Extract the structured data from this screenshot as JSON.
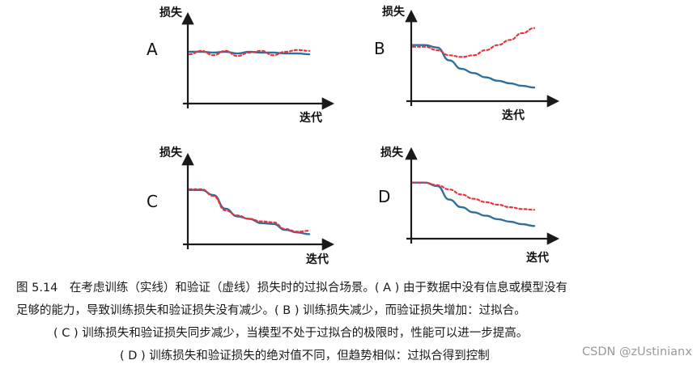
{
  "chart_data": [
    {
      "type": "line",
      "panel": "A",
      "xlabel": "迭代",
      "ylabel": "损失",
      "ylim": [
        0,
        1
      ],
      "x": [
        0,
        1,
        2,
        3,
        4,
        5,
        6,
        7,
        8,
        9,
        10
      ],
      "series": [
        {
          "style": "solid",
          "color": "#2e6f9c",
          "values": [
            0.61,
            0.61,
            0.6,
            0.61,
            0.59,
            0.61,
            0.6,
            0.6,
            0.59,
            0.59,
            0.58
          ]
        },
        {
          "style": "dashed",
          "color": "#e8343f",
          "values": [
            0.58,
            0.62,
            0.57,
            0.62,
            0.56,
            0.6,
            0.62,
            0.57,
            0.61,
            0.63,
            0.62
          ]
        }
      ]
    },
    {
      "type": "line",
      "panel": "B",
      "xlabel": "迭代",
      "ylabel": "损失",
      "ylim": [
        0,
        1
      ],
      "x": [
        0,
        1,
        2,
        3,
        4,
        5,
        6,
        7,
        8,
        9,
        10
      ],
      "series": [
        {
          "style": "solid",
          "color": "#2e6f9c",
          "values": [
            0.66,
            0.66,
            0.63,
            0.48,
            0.38,
            0.33,
            0.28,
            0.24,
            0.21,
            0.18,
            0.16
          ]
        },
        {
          "style": "dashed",
          "color": "#e8343f",
          "values": [
            0.64,
            0.64,
            0.6,
            0.54,
            0.52,
            0.54,
            0.6,
            0.66,
            0.72,
            0.8,
            0.86
          ]
        }
      ]
    },
    {
      "type": "line",
      "panel": "C",
      "xlabel": "迭代",
      "ylabel": "损失",
      "ylim": [
        0,
        1
      ],
      "x": [
        0,
        1,
        2,
        3,
        4,
        5,
        6,
        7,
        8,
        9,
        10
      ],
      "series": [
        {
          "style": "solid",
          "color": "#2e6f9c",
          "values": [
            0.64,
            0.64,
            0.58,
            0.42,
            0.33,
            0.3,
            0.25,
            0.24,
            0.17,
            0.14,
            0.12
          ]
        },
        {
          "style": "dashed",
          "color": "#e8343f",
          "values": [
            0.65,
            0.65,
            0.57,
            0.4,
            0.34,
            0.3,
            0.27,
            0.26,
            0.18,
            0.15,
            0.16
          ]
        }
      ]
    },
    {
      "type": "line",
      "panel": "D",
      "xlabel": "迭代",
      "ylabel": "损失",
      "ylim": [
        0,
        1
      ],
      "x": [
        0,
        1,
        2,
        3,
        4,
        5,
        6,
        7,
        8,
        9,
        10
      ],
      "series": [
        {
          "style": "solid",
          "color": "#2e6f9c",
          "values": [
            0.66,
            0.66,
            0.62,
            0.46,
            0.37,
            0.31,
            0.27,
            0.23,
            0.2,
            0.17,
            0.15
          ]
        },
        {
          "style": "dashed",
          "color": "#e8343f",
          "values": [
            0.66,
            0.66,
            0.63,
            0.58,
            0.52,
            0.47,
            0.43,
            0.4,
            0.37,
            0.35,
            0.34
          ]
        }
      ]
    }
  ],
  "caption": {
    "line1": "图 5.14　在考虑训练（实线）和验证（虚线）损失时的过拟合场景。( A ) 由于数据中没有信息或模型没有",
    "line2": "足够的能力，导致训练损失和验证损失没有减少。( B ) 训练损失减少，而验证损失增加：过拟合。",
    "line3": "( C ) 训练损失和验证损失同步减少，当模型不处于过拟合的极限时，性能可以进一步提高。",
    "line4": "( D ) 训练损失和验证损失的绝对值不同，但趋势相似：过拟合得到控制"
  },
  "watermark": "CSDN @zUstinianx"
}
